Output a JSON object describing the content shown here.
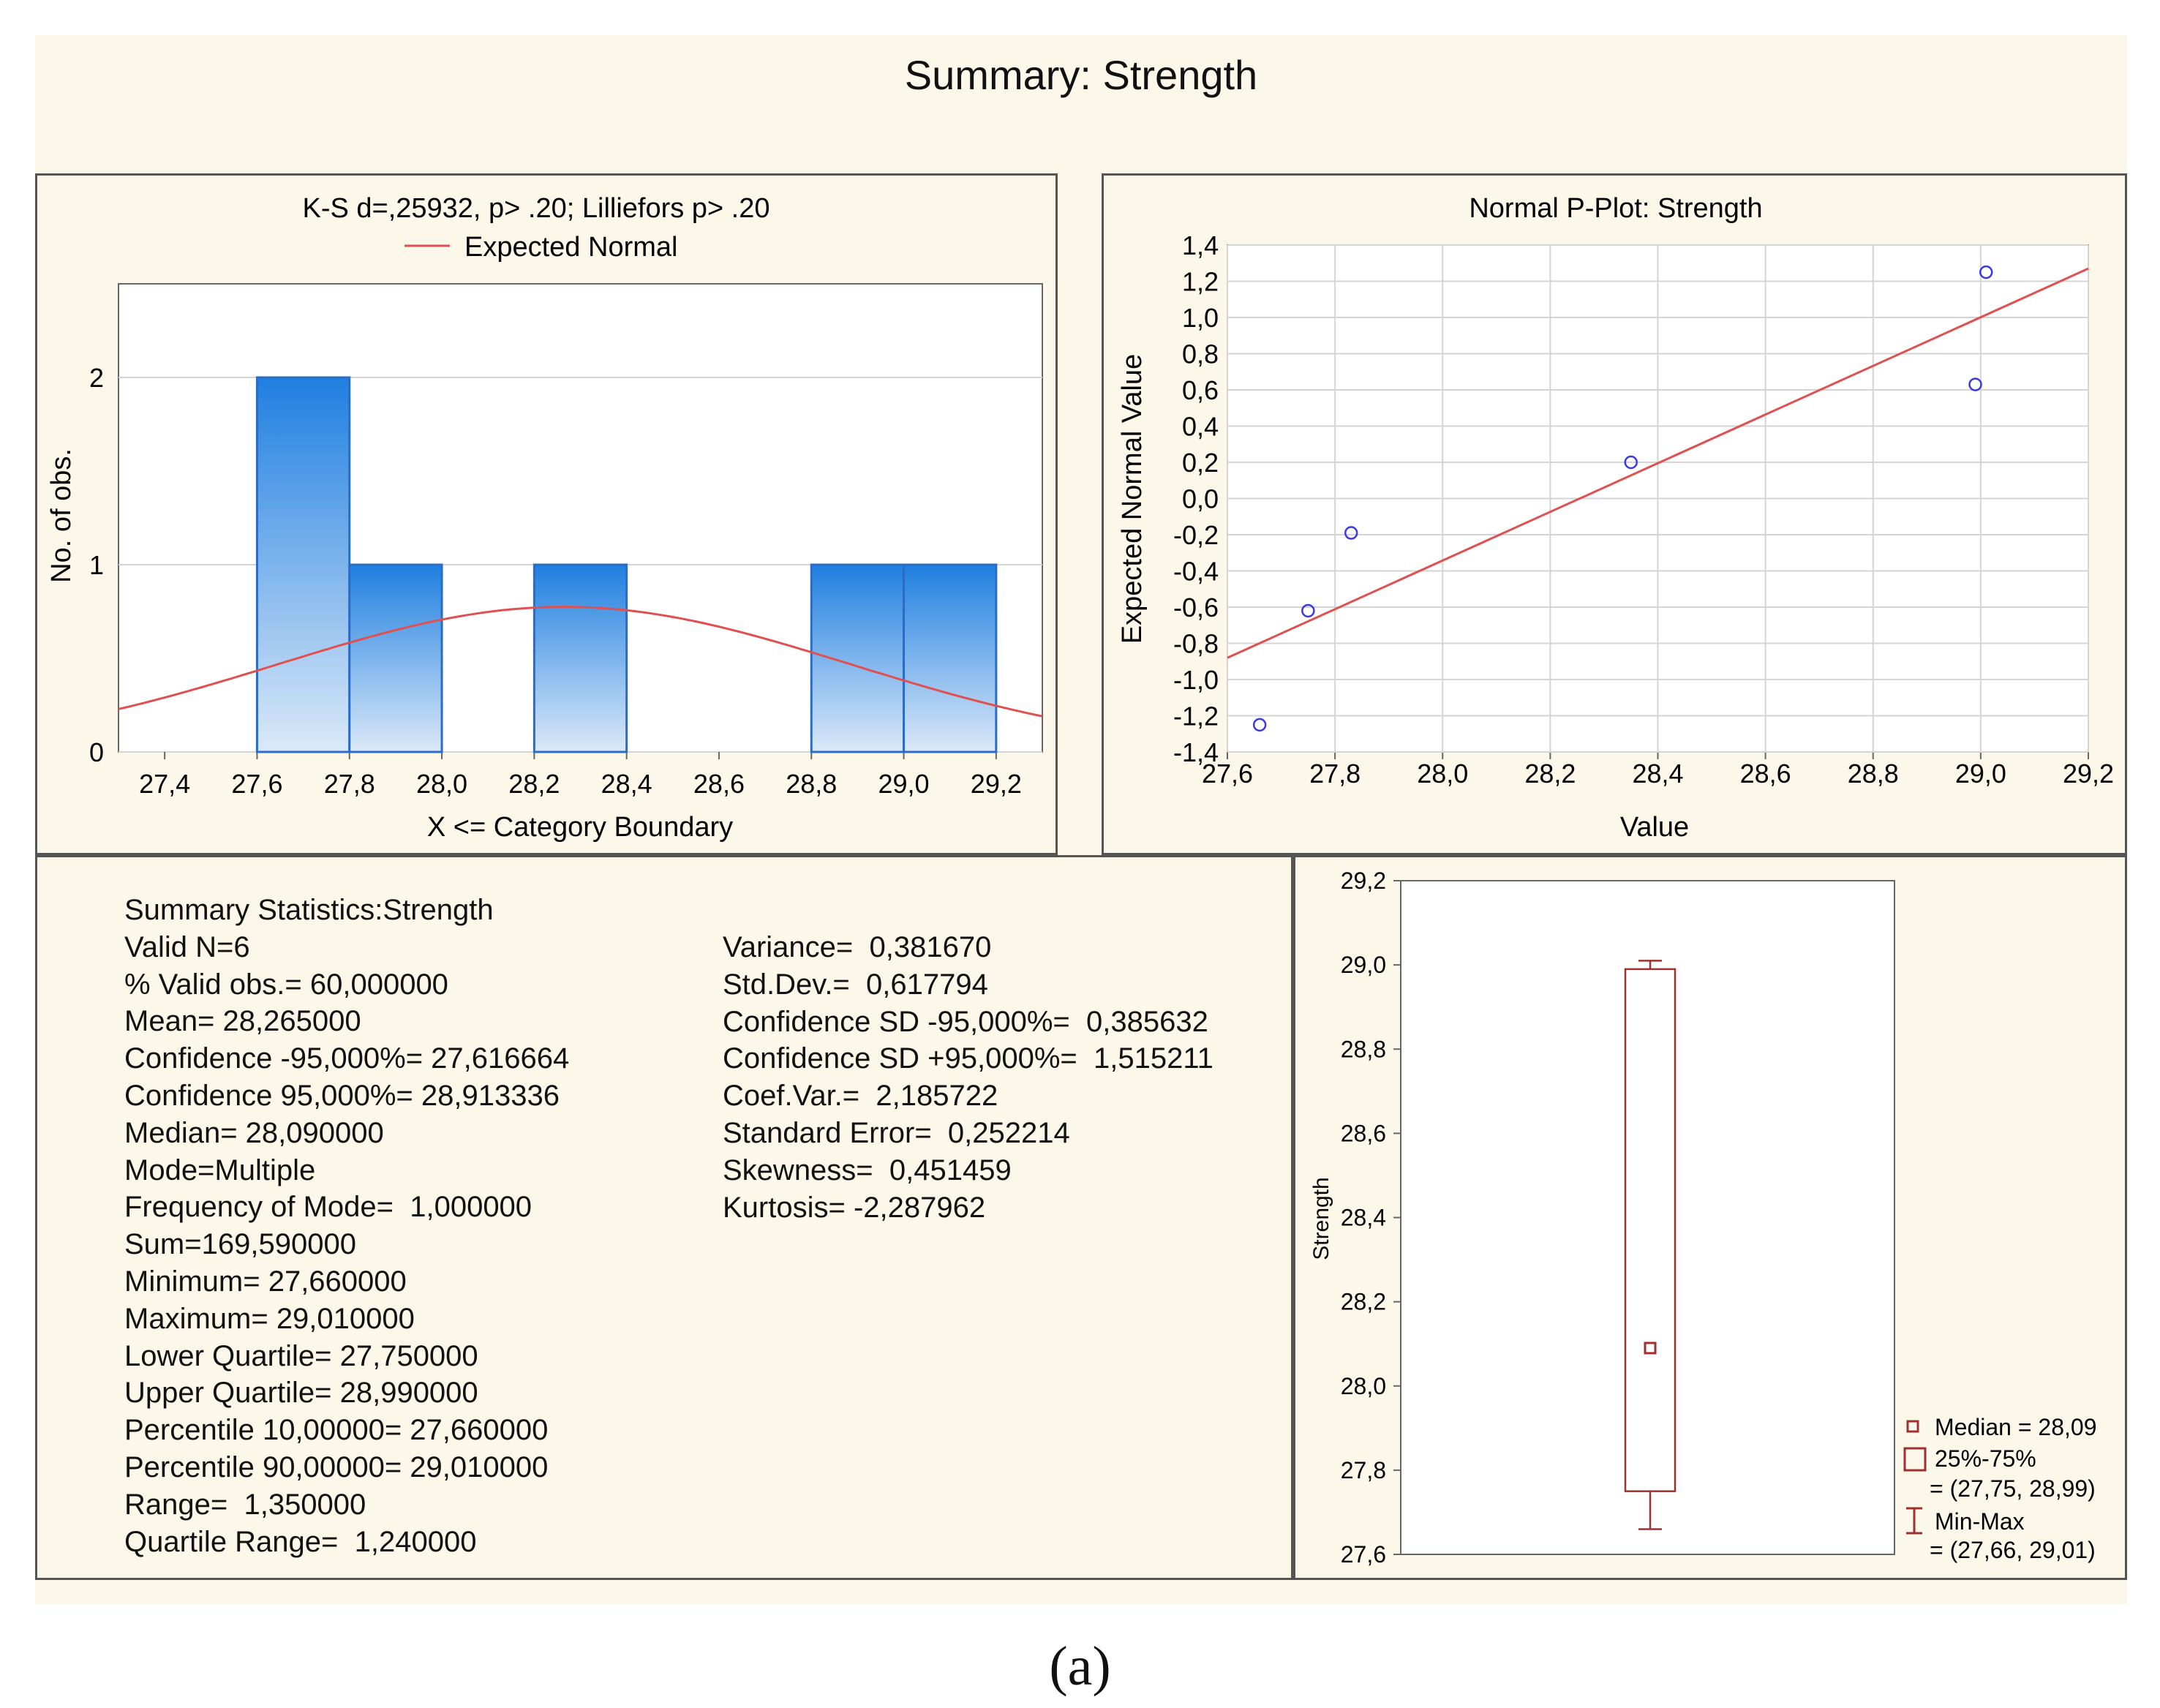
{
  "title": "Summary: Strength",
  "caption": "(a)",
  "colors": {
    "background": "#fbf8ea",
    "bar_top": "#1f7fe0",
    "bar_bottom": "#dbe9f8",
    "bar_edge": "#2b6cc4",
    "curve": "#e05050",
    "points": "#3a3ae0",
    "box": "#a03030"
  },
  "chart_data": [
    {
      "type": "bar",
      "title": "K-S d=,25932, p> .20; Lilliefors p> .20",
      "legend": [
        "Expected Normal"
      ],
      "legend_position": "top",
      "xlabel": "X <= Category Boundary",
      "ylabel": "No. of obs.",
      "xlim": [
        27.3,
        29.3
      ],
      "ylim": [
        0,
        2.5
      ],
      "xticks": [
        "27,4",
        "27,6",
        "27,8",
        "28,0",
        "28,2",
        "28,4",
        "28,6",
        "28,8",
        "29,0",
        "29,2"
      ],
      "yticks": [
        "0",
        "1",
        "2"
      ],
      "bins": [
        {
          "from": 27.6,
          "to": 27.8,
          "count": 2
        },
        {
          "from": 27.8,
          "to": 28.0,
          "count": 1
        },
        {
          "from": 28.2,
          "to": 28.4,
          "count": 1
        },
        {
          "from": 28.8,
          "to": 29.0,
          "count": 1
        },
        {
          "from": 29.0,
          "to": 29.2,
          "count": 1
        }
      ],
      "expected_normal": {
        "mean": 28.265,
        "sd": 0.617794,
        "n": 6,
        "bin_width": 0.2
      },
      "grid": true
    },
    {
      "type": "scatter",
      "title": "Normal P-Plot: Strength",
      "xlabel": "Value",
      "ylabel": "Expected Normal Value",
      "xlim": [
        27.6,
        29.2
      ],
      "ylim": [
        -1.4,
        1.4
      ],
      "xticks": [
        "27,6",
        "27,8",
        "28,0",
        "28,2",
        "28,4",
        "28,6",
        "28,8",
        "29,0",
        "29,2"
      ],
      "yticks": [
        "-1,4",
        "-1,2",
        "-1,0",
        "-0,8",
        "-0,6",
        "-0,4",
        "-0,2",
        "0,0",
        "0,2",
        "0,4",
        "0,6",
        "0,8",
        "1,0",
        "1,2",
        "1,4"
      ],
      "points": [
        {
          "x": 27.66,
          "y": -1.25
        },
        {
          "x": 27.75,
          "y": -0.62
        },
        {
          "x": 27.83,
          "y": -0.19
        },
        {
          "x": 28.35,
          "y": 0.2
        },
        {
          "x": 28.99,
          "y": 0.63
        },
        {
          "x": 29.01,
          "y": 1.25
        }
      ],
      "fit_line": [
        {
          "x": 27.6,
          "y": -0.88
        },
        {
          "x": 29.2,
          "y": 1.27
        }
      ],
      "grid": true
    },
    {
      "type": "box",
      "ylabel": "Strength",
      "ylim": [
        27.6,
        29.2
      ],
      "yticks": [
        "27,6",
        "27,8",
        "28,0",
        "28,2",
        "28,4",
        "28,6",
        "28,8",
        "29,0",
        "29,2"
      ],
      "median": 28.09,
      "q1": 27.75,
      "q3": 28.99,
      "min": 27.66,
      "max": 29.01,
      "legend": [
        "Median = 28,09",
        "25%-75%",
        "= (27,75, 28,99)",
        "Min-Max",
        "= (27,66, 29,01)"
      ],
      "legend_position": "bottom-right",
      "grid": false
    }
  ],
  "stats_left": [
    "Summary Statistics:Strength",
    "Valid N=6",
    "% Valid obs.= 60,000000",
    "Mean= 28,265000",
    "Confidence -95,000%= 27,616664",
    "Confidence 95,000%= 28,913336",
    "Median= 28,090000",
    "Mode=Multiple",
    "Frequency of Mode=  1,000000",
    "Sum=169,590000",
    "Minimum= 27,660000",
    "Maximum= 29,010000",
    "Lower Quartile= 27,750000",
    "Upper Quartile= 28,990000",
    "Percentile 10,00000= 27,660000",
    "Percentile 90,00000= 29,010000",
    "Range=  1,350000",
    "Quartile Range=  1,240000"
  ],
  "stats_right": [
    "Variance=  0,381670",
    "Std.Dev.=  0,617794",
    "Confidence SD -95,000%=  0,385632",
    "Confidence SD +95,000%=  1,515211",
    "Coef.Var.=  2,185722",
    "Standard Error=  0,252214",
    "Skewness=  0,451459",
    "Kurtosis= -2,287962"
  ]
}
